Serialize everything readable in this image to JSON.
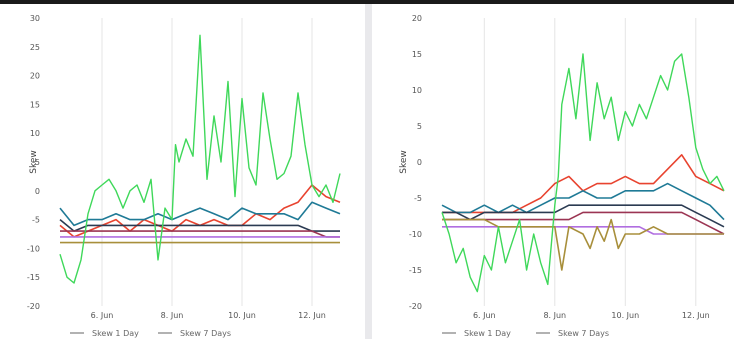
{
  "chart_data": [
    {
      "type": "line",
      "ylabel": "Skew",
      "xlabel": "",
      "ylim": [
        -20,
        30
      ],
      "yticks": [
        -20,
        -15,
        -10,
        -5,
        0,
        5,
        10,
        15,
        20,
        25,
        30
      ],
      "xlim": [
        4.8,
        12.8
      ],
      "xticks": [
        {
          "value": 6,
          "label": "6. Jun"
        },
        {
          "value": 8,
          "label": "8. Jun"
        },
        {
          "value": 10,
          "label": "10. Jun"
        },
        {
          "value": 12,
          "label": "12. Jun"
        }
      ],
      "grid": "vertical",
      "legend": [
        "Skew 1 Day",
        "Skew 7 Days"
      ],
      "series": [
        {
          "color": "#3fd85a",
          "x": [
            4.8,
            5.0,
            5.2,
            5.4,
            5.6,
            5.8,
            6.0,
            6.2,
            6.4,
            6.6,
            6.8,
            7.0,
            7.2,
            7.4,
            7.6,
            7.8,
            8.0,
            8.1,
            8.2,
            8.4,
            8.6,
            8.8,
            9.0,
            9.2,
            9.4,
            9.6,
            9.8,
            10.0,
            10.2,
            10.4,
            10.6,
            10.8,
            11.0,
            11.2,
            11.4,
            11.6,
            11.8,
            12.0,
            12.2,
            12.4,
            12.6,
            12.8
          ],
          "y": [
            -11,
            -15,
            -16,
            -12,
            -4,
            0,
            1,
            2,
            0,
            -3,
            0,
            1,
            -2,
            2,
            -12,
            -3,
            -5,
            8,
            5,
            9,
            6,
            27,
            2,
            13,
            5,
            19,
            -1,
            16,
            4,
            1,
            17,
            9,
            2,
            3,
            6,
            17,
            8,
            1,
            -1,
            1,
            -2,
            3
          ]
        },
        {
          "color": "#e8432f",
          "x": [
            4.8,
            5.2,
            5.6,
            6.0,
            6.4,
            6.8,
            7.2,
            7.6,
            8.0,
            8.4,
            8.8,
            9.2,
            9.6,
            10.0,
            10.4,
            10.8,
            11.2,
            11.6,
            12.0,
            12.4,
            12.8
          ],
          "y": [
            -6,
            -8,
            -7,
            -6,
            -5,
            -7,
            -5,
            -6,
            -7,
            -5,
            -6,
            -5,
            -6,
            -6,
            -4,
            -5,
            -3,
            -2,
            1,
            -1,
            -2
          ]
        },
        {
          "color": "#1f7a96",
          "x": [
            4.8,
            5.2,
            5.6,
            6.0,
            6.4,
            6.8,
            7.2,
            7.6,
            8.0,
            8.4,
            8.8,
            9.2,
            9.6,
            10.0,
            10.4,
            10.8,
            11.2,
            11.6,
            12.0,
            12.4,
            12.8
          ],
          "y": [
            -3,
            -6,
            -5,
            -5,
            -4,
            -5,
            -5,
            -4,
            -5,
            -4,
            -3,
            -4,
            -5,
            -3,
            -4,
            -4,
            -4,
            -5,
            -2,
            -3,
            -4
          ]
        },
        {
          "color": "#2b3b52",
          "x": [
            4.8,
            5.2,
            5.6,
            6.0,
            6.4,
            6.8,
            7.2,
            7.6,
            8.0,
            8.4,
            8.8,
            9.2,
            9.6,
            10.0,
            10.4,
            10.8,
            11.2,
            11.6,
            12.0,
            12.4,
            12.8
          ],
          "y": [
            -5,
            -7,
            -6,
            -6,
            -6,
            -6,
            -6,
            -6,
            -6,
            -6,
            -6,
            -6,
            -6,
            -6,
            -6,
            -6,
            -6,
            -6,
            -7,
            -7,
            -7
          ]
        },
        {
          "color": "#9b3553",
          "x": [
            4.8,
            5.2,
            5.6,
            6.0,
            6.4,
            6.8,
            7.2,
            7.6,
            8.0,
            8.4,
            8.8,
            9.2,
            9.6,
            10.0,
            10.4,
            10.8,
            11.2,
            11.6,
            12.0,
            12.4,
            12.8
          ],
          "y": [
            -7,
            -7,
            -7,
            -7,
            -7,
            -7,
            -7,
            -7,
            -7,
            -7,
            -7,
            -7,
            -7,
            -7,
            -7,
            -7,
            -7,
            -7,
            -7,
            -8,
            -8
          ]
        },
        {
          "color": "#b06ee0",
          "x": [
            4.8,
            5.2,
            5.6,
            6.0,
            6.4,
            6.8,
            7.2,
            7.6,
            8.0,
            8.4,
            8.8,
            9.2,
            9.6,
            10.0,
            10.4,
            10.8,
            11.2,
            11.6,
            12.0,
            12.4,
            12.8
          ],
          "y": [
            -8,
            -8,
            -8,
            -8,
            -8,
            -8,
            -8,
            -8,
            -8,
            -8,
            -8,
            -8,
            -8,
            -8,
            -8,
            -8,
            -8,
            -8,
            -8,
            -8,
            -8
          ]
        },
        {
          "color": "#a88f3b",
          "x": [
            4.8,
            5.2,
            5.6,
            6.0,
            6.4,
            6.8,
            7.2,
            7.6,
            8.0,
            8.4,
            8.8,
            9.2,
            9.6,
            10.0,
            10.4,
            10.8,
            11.2,
            11.6,
            12.0,
            12.4,
            12.8
          ],
          "y": [
            -9,
            -9,
            -9,
            -9,
            -9,
            -9,
            -9,
            -9,
            -9,
            -9,
            -9,
            -9,
            -9,
            -9,
            -9,
            -9,
            -9,
            -9,
            -9,
            -9,
            -9
          ]
        }
      ]
    },
    {
      "type": "line",
      "ylabel": "Skew",
      "xlabel": "",
      "ylim": [
        -20,
        20
      ],
      "yticks": [
        -20,
        -15,
        -10,
        -5,
        0,
        5,
        10,
        15,
        20
      ],
      "xlim": [
        4.8,
        12.8
      ],
      "xticks": [
        {
          "value": 6,
          "label": "6. Jun"
        },
        {
          "value": 8,
          "label": "8. Jun"
        },
        {
          "value": 10,
          "label": "10. Jun"
        },
        {
          "value": 12,
          "label": "12. Jun"
        }
      ],
      "grid": "vertical",
      "legend": [
        "Skew 1 Day",
        "Skew 7 Days"
      ],
      "series": [
        {
          "color": "#3fd85a",
          "x": [
            4.8,
            5.0,
            5.2,
            5.4,
            5.6,
            5.8,
            6.0,
            6.2,
            6.4,
            6.6,
            6.8,
            7.0,
            7.2,
            7.4,
            7.6,
            7.8,
            8.0,
            8.1,
            8.2,
            8.4,
            8.6,
            8.8,
            9.0,
            9.2,
            9.4,
            9.6,
            9.8,
            10.0,
            10.2,
            10.4,
            10.6,
            10.8,
            11.0,
            11.2,
            11.4,
            11.6,
            11.8,
            12.0,
            12.2,
            12.4,
            12.6,
            12.8
          ],
          "y": [
            -7,
            -10,
            -14,
            -12,
            -16,
            -18,
            -13,
            -15,
            -9,
            -14,
            -11,
            -8,
            -15,
            -10,
            -14,
            -17,
            -6,
            -2,
            8,
            13,
            6,
            15,
            3,
            11,
            6,
            9,
            3,
            7,
            5,
            8,
            6,
            9,
            12,
            10,
            14,
            15,
            9,
            2,
            -1,
            -3,
            -2,
            -4
          ]
        },
        {
          "color": "#e8432f",
          "x": [
            4.8,
            5.2,
            5.6,
            6.0,
            6.4,
            6.8,
            7.2,
            7.6,
            8.0,
            8.4,
            8.8,
            9.2,
            9.6,
            10.0,
            10.4,
            10.8,
            11.2,
            11.6,
            12.0,
            12.4,
            12.8
          ],
          "y": [
            -7,
            -7,
            -7,
            -7,
            -7,
            -7,
            -6,
            -5,
            -3,
            -2,
            -4,
            -3,
            -3,
            -2,
            -3,
            -3,
            -1,
            1,
            -2,
            -3,
            -4
          ]
        },
        {
          "color": "#1f7a96",
          "x": [
            4.8,
            5.2,
            5.6,
            6.0,
            6.4,
            6.8,
            7.2,
            7.6,
            8.0,
            8.4,
            8.8,
            9.2,
            9.6,
            10.0,
            10.4,
            10.8,
            11.2,
            11.6,
            12.0,
            12.4,
            12.8
          ],
          "y": [
            -6,
            -7,
            -7,
            -6,
            -7,
            -6,
            -7,
            -6,
            -5,
            -5,
            -4,
            -5,
            -5,
            -4,
            -4,
            -4,
            -3,
            -4,
            -5,
            -6,
            -8
          ]
        },
        {
          "color": "#2b3b52",
          "x": [
            4.8,
            5.2,
            5.6,
            6.0,
            6.4,
            6.8,
            7.2,
            7.6,
            8.0,
            8.4,
            8.8,
            9.2,
            9.6,
            10.0,
            10.4,
            10.8,
            11.2,
            11.6,
            12.0,
            12.4,
            12.8
          ],
          "y": [
            -7,
            -7,
            -8,
            -7,
            -7,
            -7,
            -7,
            -7,
            -7,
            -6,
            -6,
            -6,
            -6,
            -6,
            -6,
            -6,
            -6,
            -6,
            -7,
            -8,
            -9
          ]
        },
        {
          "color": "#9b3553",
          "x": [
            4.8,
            5.2,
            5.6,
            6.0,
            6.4,
            6.8,
            7.2,
            7.6,
            8.0,
            8.4,
            8.8,
            9.2,
            9.6,
            10.0,
            10.4,
            10.8,
            11.2,
            11.6,
            12.0,
            12.4,
            12.8
          ],
          "y": [
            -8,
            -8,
            -8,
            -8,
            -8,
            -8,
            -8,
            -8,
            -8,
            -8,
            -7,
            -7,
            -7,
            -7,
            -7,
            -7,
            -7,
            -7,
            -8,
            -9,
            -10
          ]
        },
        {
          "color": "#b06ee0",
          "x": [
            4.8,
            5.2,
            5.6,
            6.0,
            6.4,
            6.8,
            7.2,
            7.6,
            8.0,
            8.4,
            8.8,
            9.2,
            9.6,
            10.0,
            10.4,
            10.8,
            11.2,
            11.6,
            12.0,
            12.4,
            12.8
          ],
          "y": [
            -9,
            -9,
            -9,
            -9,
            -9,
            -9,
            -9,
            -9,
            -9,
            -9,
            -9,
            -9,
            -9,
            -9,
            -9,
            -10,
            -10,
            -10,
            -10,
            -10,
            -10
          ]
        },
        {
          "color": "#a88f3b",
          "x": [
            4.8,
            5.2,
            5.6,
            6.0,
            6.4,
            6.8,
            7.2,
            7.6,
            8.0,
            8.2,
            8.4,
            8.8,
            9.0,
            9.2,
            9.4,
            9.6,
            9.8,
            10.0,
            10.4,
            10.8,
            11.2,
            11.6,
            12.0,
            12.4,
            12.8
          ],
          "y": [
            -8,
            -8,
            -8,
            -8,
            -9,
            -9,
            -9,
            -9,
            -9,
            -15,
            -9,
            -10,
            -12,
            -9,
            -11,
            -8,
            -12,
            -10,
            -10,
            -9,
            -10,
            -10,
            -10,
            -10,
            -10
          ]
        }
      ]
    }
  ]
}
